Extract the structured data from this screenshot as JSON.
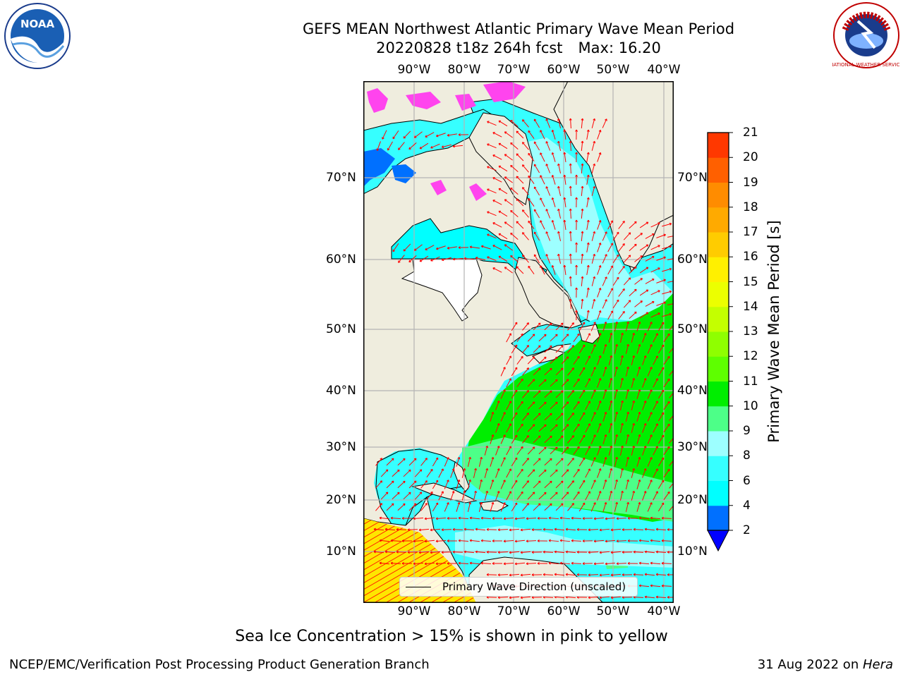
{
  "title": {
    "line1": "GEFS MEAN Northwest Atlantic Primary Wave Mean Period",
    "run": "20220828 t18z 264h fcst",
    "max": "Max: 16.20"
  },
  "axes": {
    "lon_labels": [
      "90°W",
      "80°W",
      "70°W",
      "60°W",
      "50°W",
      "40°W"
    ],
    "lat_labels": [
      "70°N",
      "60°N",
      "50°N",
      "40°N",
      "30°N",
      "20°N",
      "10°N"
    ]
  },
  "colorbar": {
    "label": "Primary Wave Mean Period [s]",
    "ticks": [
      "2",
      "4",
      "6",
      "8",
      "9",
      "10",
      "11",
      "12",
      "13",
      "14",
      "15",
      "16",
      "17",
      "18",
      "19",
      "20",
      "21"
    ],
    "colors": [
      "#0070ff",
      "#00ffff",
      "#36ffff",
      "#9dffff",
      "#4dff88",
      "#00ee00",
      "#5eff00",
      "#8fff00",
      "#c4ff00",
      "#ecff00",
      "#fff000",
      "#ffcc00",
      "#ffaa00",
      "#ff8c00",
      "#ff6000",
      "#ff3800",
      "#ff0000"
    ],
    "under_color": "#0000ff"
  },
  "legend": {
    "label": "Primary Wave Direction (unscaled)"
  },
  "footnote": "Sea Ice Concentration > 15% is shown in pink to yellow",
  "credit": "NCEP/EMC/Verification Post Processing Product Generation Branch",
  "stamp": {
    "date": "31 Aug 2022 on ",
    "host": "Hera"
  },
  "logos": {
    "left": "noaa-logo",
    "left_text": "NOAA",
    "right": "national-weather-service-logo",
    "right_text": "NATIONAL WEATHER SERVICE"
  },
  "colors": {
    "land": "#efedde",
    "grid": "#b4b4b4",
    "arrow": "#ff0000",
    "ice": "#ff44ee"
  }
}
